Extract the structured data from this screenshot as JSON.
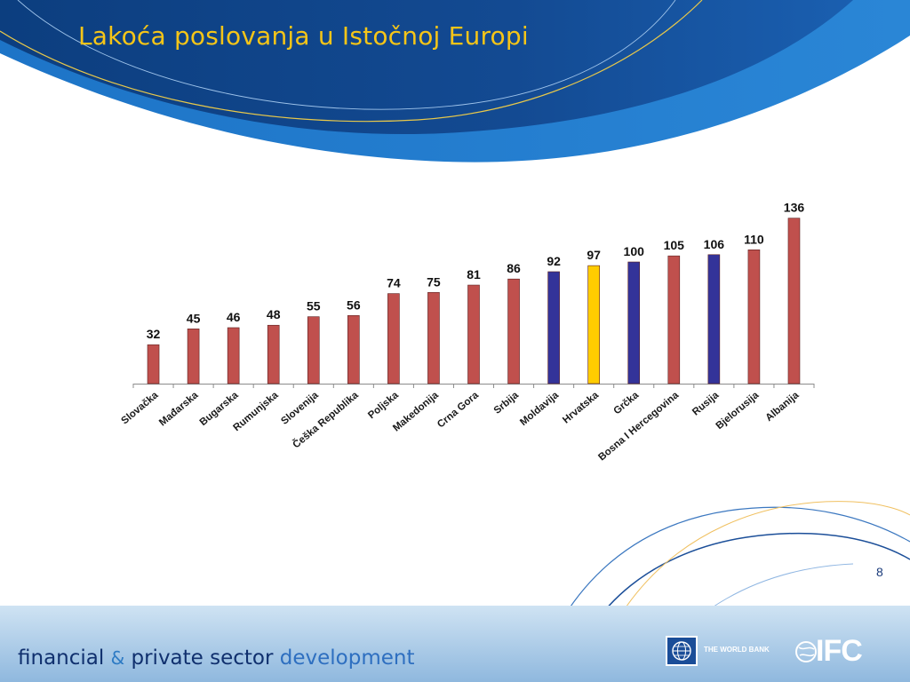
{
  "slide": {
    "title": "Lakoća poslovanja u Istočnoj Europi",
    "page_number": "8"
  },
  "footer": {
    "tagline_part1": "financial",
    "tagline_amp": "&",
    "tagline_part2": "private sector",
    "tagline_part3": "development",
    "worldbank_label": "THE WORLD BANK",
    "ifc_label": "IFC"
  },
  "colors": {
    "title": "#f5c518",
    "bar_default": "#c0504d",
    "bar_highlight_blue": "#333399",
    "bar_highlight_yellow": "#ffcc00",
    "header_dark": "#0c3e7f",
    "header_mid": "#1a5fb0"
  },
  "chart_data": {
    "type": "bar",
    "categories": [
      "Slovačka",
      "Mađarska",
      "Bugarska",
      "Rumunjska",
      "Slovenija",
      "Češka Republika",
      "Poljska",
      "Makedonija",
      "Crna Gora",
      "Srbija",
      "Moldavija",
      "Hrvatska",
      "Grčka",
      "Bosna I Hercegovina",
      "Rusija",
      "Bjelorusija",
      "Albanija"
    ],
    "values": [
      32,
      45,
      46,
      48,
      55,
      56,
      74,
      75,
      81,
      86,
      92,
      97,
      100,
      105,
      106,
      110,
      136
    ],
    "bar_colors": [
      "red",
      "red",
      "red",
      "red",
      "red",
      "red",
      "red",
      "red",
      "red",
      "red",
      "blue",
      "yellow",
      "blue",
      "red",
      "blue",
      "red",
      "red"
    ],
    "bold_labels": [
      true,
      true,
      false,
      false,
      false,
      true,
      false,
      false,
      false,
      false,
      false,
      false,
      true,
      false,
      false,
      false,
      false
    ],
    "data_labels": true,
    "ylim": [
      0,
      140
    ],
    "grid": false,
    "legend": "none",
    "xlabel": "",
    "ylabel": ""
  }
}
